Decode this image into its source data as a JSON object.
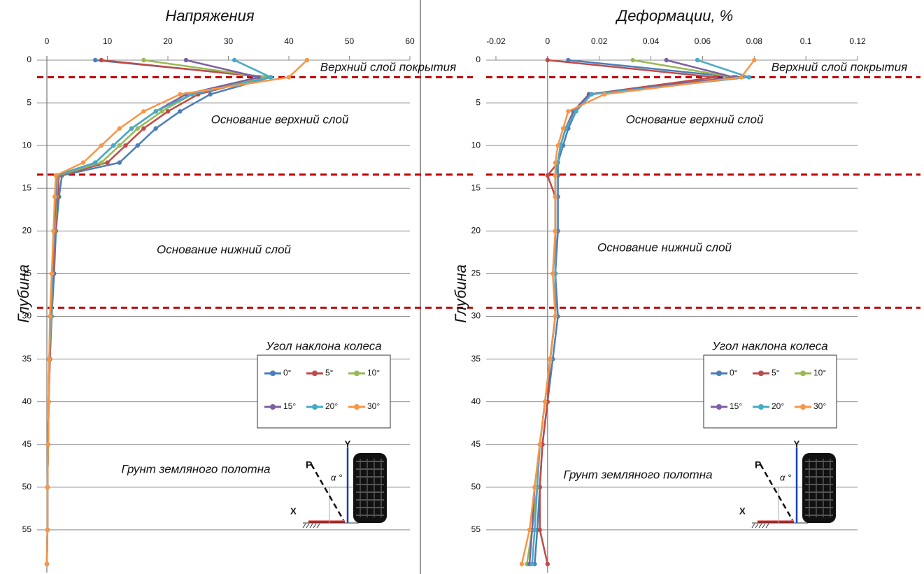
{
  "chart_data": [
    {
      "type": "line",
      "title": "Напряжения",
      "ylabel": "Глубина",
      "y": [
        0,
        2,
        4,
        6,
        8,
        10,
        12,
        13.5,
        16,
        20,
        25,
        30,
        35,
        40,
        45,
        50,
        55,
        59
      ],
      "xlim": [
        0,
        60
      ],
      "xticks": [
        0,
        10,
        20,
        30,
        40,
        50,
        60
      ],
      "ylim": [
        0,
        60
      ],
      "yticks": [
        0,
        5,
        10,
        15,
        20,
        25,
        30,
        35,
        40,
        45,
        50,
        55
      ],
      "grid": true,
      "boundaries": [
        2,
        13.4,
        29
      ],
      "boundary_color": "#c00000",
      "annotations": [
        "Верхний слой покрытия",
        "Основание верхний слой",
        "Основание нижний слой",
        "Грунт земляного полотна"
      ],
      "legend_title": "Угол наклона колеса",
      "legend": "lower right",
      "inset": {
        "p": "P",
        "y": "Y",
        "x": "X",
        "angle": "α °"
      },
      "series": [
        {
          "name": "0°",
          "color": "#4a7ebb",
          "values": [
            8,
            37,
            27,
            22,
            18,
            15,
            12,
            2.5,
            2,
            1.5,
            1.2,
            0.8,
            0.5,
            0.3,
            0.2,
            0.1,
            0.1,
            0
          ]
        },
        {
          "name": "5°",
          "color": "#be4b48",
          "values": [
            9,
            36,
            25,
            20,
            16,
            13,
            10,
            2,
            1.8,
            1.4,
            1.1,
            0.7,
            0.5,
            0.3,
            0.2,
            0.1,
            0.1,
            0
          ]
        },
        {
          "name": "10°",
          "color": "#98b954",
          "values": [
            16,
            36,
            24,
            19,
            15,
            12,
            9,
            1.8,
            1.6,
            1.3,
            1,
            0.7,
            0.4,
            0.3,
            0.2,
            0.1,
            0.1,
            0
          ]
        },
        {
          "name": "15°",
          "color": "#7d60a0",
          "values": [
            23,
            35,
            23,
            18,
            14,
            11,
            8,
            1.6,
            1.5,
            1.2,
            1,
            0.6,
            0.4,
            0.3,
            0.2,
            0.1,
            0.1,
            0
          ]
        },
        {
          "name": "20°",
          "color": "#46aac5",
          "values": [
            31,
            37,
            24,
            18,
            14,
            11,
            8,
            1.5,
            1.4,
            1.1,
            0.9,
            0.6,
            0.4,
            0.3,
            0.2,
            0.1,
            0.1,
            0
          ]
        },
        {
          "name": "30°",
          "color": "#f79646",
          "values": [
            43,
            40,
            22,
            16,
            12,
            9,
            6,
            1.5,
            1.3,
            1.1,
            0.8,
            0.5,
            0.4,
            0.3,
            0.2,
            0.1,
            0.1,
            0
          ]
        }
      ]
    },
    {
      "type": "line",
      "title": "Деформации, %",
      "ylabel": "Глубина",
      "y": [
        0,
        2,
        4,
        6,
        8,
        10,
        12,
        13.5,
        16,
        20,
        25,
        30,
        35,
        40,
        45,
        50,
        55,
        59
      ],
      "xlim": [
        -0.02,
        0.12
      ],
      "xticks": [
        -0.02,
        0,
        0.02,
        0.04,
        0.06,
        0.08,
        0.1,
        0.12
      ],
      "ylim": [
        0,
        60
      ],
      "yticks": [
        0,
        5,
        10,
        15,
        20,
        25,
        30,
        35,
        40,
        45,
        50,
        55
      ],
      "grid": true,
      "boundaries": [
        2,
        13.4,
        29
      ],
      "boundary_color": "#c00000",
      "annotations": [
        "Верхний слой покрытия",
        "Основание верхний слой",
        "Основание нижний слой",
        "Грунт земляного полотна"
      ],
      "legend_title": "Угол наклона колеса",
      "legend": "lower right",
      "inset": {
        "p": "P",
        "y": "Y",
        "x": "X",
        "angle": "α °"
      },
      "series": [
        {
          "name": "0°",
          "color": "#4a7ebb",
          "values": [
            0.008,
            0.073,
            0.017,
            0.011,
            0.008,
            0.006,
            0.004,
            0.004,
            0.004,
            0.004,
            0.003,
            0.004,
            0.002,
            0,
            -0.002,
            -0.003,
            -0.004,
            -0.005
          ]
        },
        {
          "name": "5°",
          "color": "#be4b48",
          "values": [
            0,
            0.065,
            0.016,
            0.01,
            0.007,
            0.005,
            0.004,
            0,
            0.003,
            0.003,
            0.003,
            0.003,
            0.001,
            0,
            -0.002,
            -0.003,
            -0.003,
            0
          ]
        },
        {
          "name": "10°",
          "color": "#98b954",
          "values": [
            0.033,
            0.072,
            0.016,
            0.01,
            0.007,
            0.005,
            0.004,
            0.003,
            0.003,
            0.003,
            0.003,
            0.003,
            0.001,
            -0.001,
            -0.003,
            -0.004,
            -0.006,
            -0.008
          ]
        },
        {
          "name": "15°",
          "color": "#7d60a0",
          "values": [
            0.046,
            0.072,
            0.016,
            0.01,
            0.007,
            0.005,
            0.004,
            0.003,
            0.003,
            0.003,
            0.003,
            0.003,
            0.001,
            -0.001,
            -0.003,
            -0.005,
            -0.006,
            -0.007
          ]
        },
        {
          "name": "20°",
          "color": "#46aac5",
          "values": [
            0.058,
            0.078,
            0.017,
            0.011,
            0.007,
            0.005,
            0.004,
            0.003,
            0.003,
            0.003,
            0.003,
            0.003,
            0.001,
            -0.001,
            -0.003,
            -0.004,
            -0.005,
            -0.006
          ]
        },
        {
          "name": "30°",
          "color": "#f79646",
          "values": [
            0.08,
            0.075,
            0.022,
            0.008,
            0.006,
            0.004,
            0.003,
            0.003,
            0.003,
            0.003,
            0.002,
            0.003,
            0.001,
            -0.001,
            -0.003,
            -0.005,
            -0.007,
            -0.01
          ]
        }
      ]
    }
  ]
}
